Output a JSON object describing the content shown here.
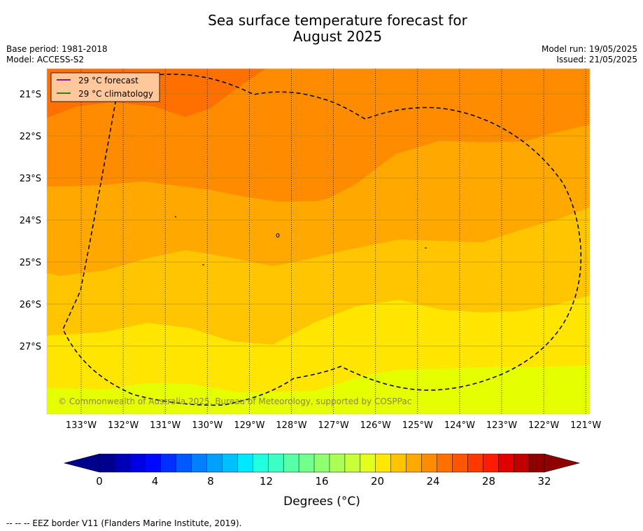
{
  "title": "Sea surface temperature forecast for\nAugust 2025",
  "base_period": "Base period: 1981-2018",
  "model": "Model: ACCESS-S2",
  "model_run": "Model run: 19/05/2025",
  "issued": "Issued: 21/05/2025",
  "legend": {
    "forecast": "29 °C  forecast",
    "climatology": "29 °C  climatology",
    "forecast_color": "#800080",
    "climatology_color": "#008000"
  },
  "watermark": "© Commonwealth of Australia 2025, Bureau of Meteorology, supported by COSPPac",
  "lon_ticks": [
    "133°W",
    "132°W",
    "131°W",
    "130°W",
    "129°W",
    "128°W",
    "127°W",
    "126°W",
    "125°W",
    "124°W",
    "123°W",
    "122°W",
    "121°W"
  ],
  "lat_ticks": [
    "21°S",
    "22°S",
    "23°S",
    "24°S",
    "25°S",
    "26°S",
    "27°S"
  ],
  "colorbar": {
    "label": "Degrees (°C)",
    "ticks": [
      "0",
      "4",
      "8",
      "12",
      "16",
      "20",
      "24",
      "28",
      "32"
    ],
    "colors": [
      "#00008f",
      "#0000b8",
      "#0000e0",
      "#0008ff",
      "#0030ff",
      "#0058ff",
      "#0080ff",
      "#00a0ff",
      "#00c0ff",
      "#00e8ff",
      "#20ffdf",
      "#3cffc3",
      "#58ffa7",
      "#73ff8c",
      "#8fff70",
      "#abff54",
      "#c7ff38",
      "#e3ff1c",
      "#ffe800",
      "#ffc400",
      "#ffa800",
      "#ff8c00",
      "#ff7000",
      "#ff5400",
      "#ff3800",
      "#ff1c00",
      "#e00000",
      "#c00000",
      "#8f0000"
    ],
    "under_color": "#00008f",
    "over_color": "#8f0000"
  },
  "field_colors": {
    "c20": "#e5ff00",
    "c22": "#ffe600",
    "c23": "#ffc600",
    "c24": "#ffa800",
    "c25": "#ff8c00",
    "c26": "#ff7000"
  },
  "footnote": "--  --  -- EEZ border V11 (Flanders Marine Institute, 2019)."
}
